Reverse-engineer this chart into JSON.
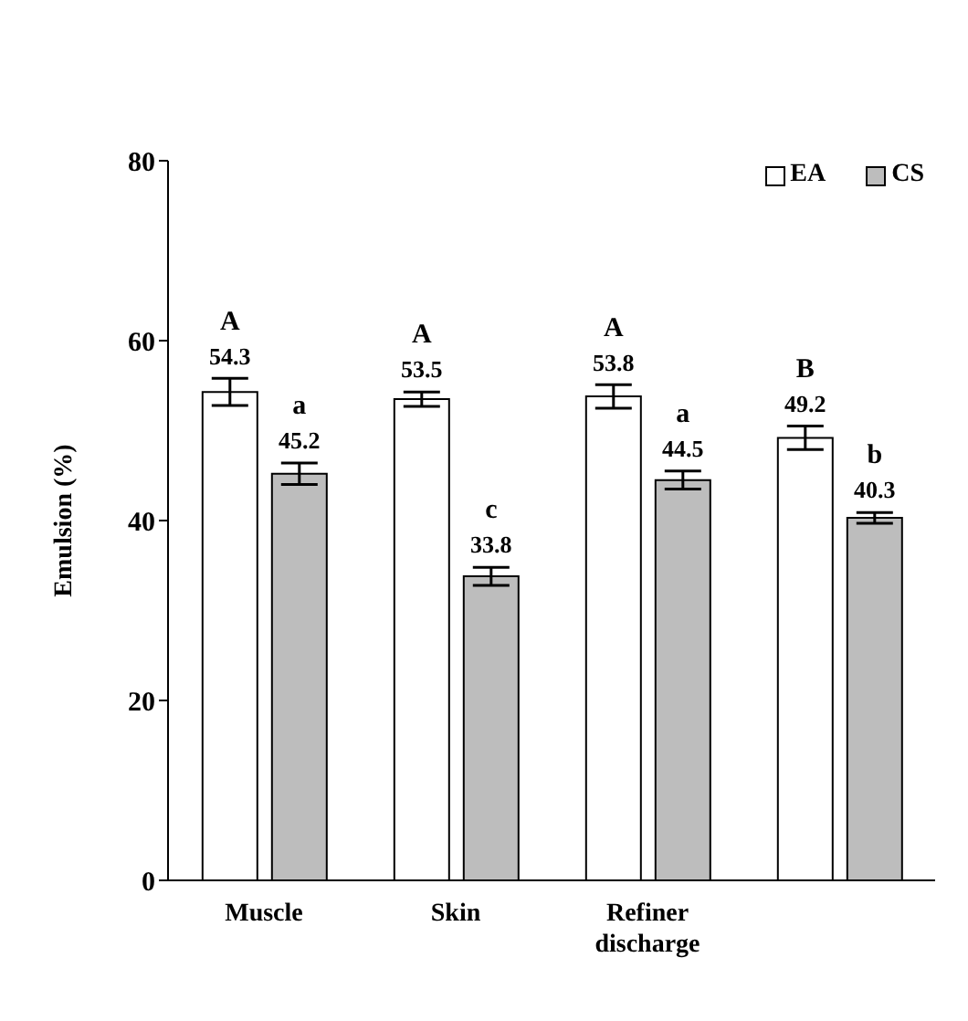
{
  "chart_data": {
    "type": "bar",
    "ylabel": "Emulsion (%)",
    "categories": [
      "Muscle",
      "Skin",
      "Refiner discharge",
      null
    ],
    "series": [
      {
        "name": "EA",
        "color": "#ffffff",
        "values": [
          54.3,
          53.5,
          53.8,
          49.2
        ],
        "errors": [
          1.5,
          0.8,
          1.3,
          1.3
        ]
      },
      {
        "name": "CS",
        "color": "#bdbdbd",
        "values": [
          45.2,
          33.8,
          44.5,
          40.3
        ],
        "errors": [
          1.2,
          1.0,
          1.0,
          0.6
        ]
      }
    ],
    "ylim": [
      0,
      80
    ],
    "yticks": [
      0,
      20,
      40,
      60,
      80
    ],
    "grid": false,
    "legend": "top right",
    "data_labels": true,
    "annotations": [
      "A",
      "a",
      "A",
      "c",
      "A",
      "a",
      "B",
      "b"
    ]
  }
}
